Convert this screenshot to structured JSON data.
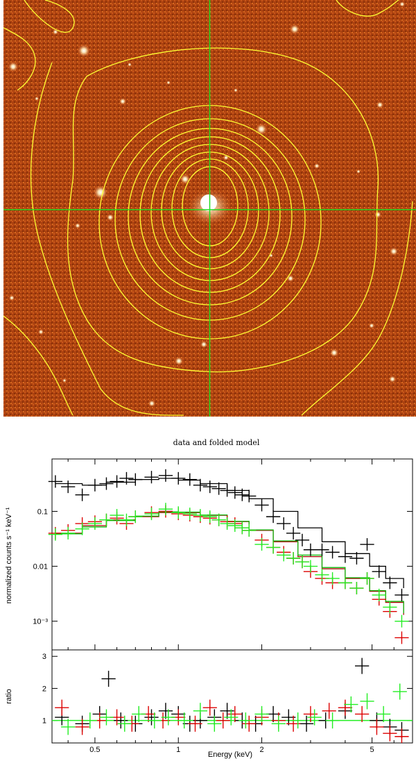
{
  "image_panel": {
    "background_color": "#a8400f",
    "contour_color": "#ffff33",
    "crosshair_color": "#22dd22",
    "crosshair": {
      "x_frac": 0.5,
      "y_frac": 0.503
    }
  },
  "chart_data": [
    {
      "type": "scatter",
      "title": "data and folded model",
      "xlabel": "Energy (keV)",
      "ylabel": "normalized counts s⁻¹ keV⁻¹",
      "xscale": "log",
      "yscale": "log",
      "xlim": [
        0.35,
        7.0
      ],
      "ylim": [
        0.0003,
        0.9
      ],
      "y_tick_labels": [
        "0.1",
        "0.01",
        "10⁻³"
      ],
      "y_tick_values": [
        0.1,
        0.01,
        0.001
      ],
      "x_tick_labels": [
        "0.5",
        "1",
        "2",
        "5"
      ],
      "x_tick_values": [
        0.5,
        1,
        2,
        5
      ],
      "series": [
        {
          "name": "black",
          "color": "#000000",
          "x": [
            0.36,
            0.4,
            0.45,
            0.5,
            0.55,
            0.6,
            0.65,
            0.7,
            0.8,
            0.9,
            1.0,
            1.1,
            1.2,
            1.3,
            1.4,
            1.5,
            1.6,
            1.7,
            1.8,
            2.0,
            2.2,
            2.4,
            2.6,
            2.8,
            3.0,
            3.3,
            3.6,
            4.0,
            4.4,
            4.8,
            5.3,
            5.8,
            6.4
          ],
          "y": [
            0.35,
            0.28,
            0.2,
            0.3,
            0.32,
            0.35,
            0.4,
            0.38,
            0.42,
            0.45,
            0.4,
            0.38,
            0.3,
            0.28,
            0.26,
            0.24,
            0.22,
            0.2,
            0.19,
            0.13,
            0.08,
            0.06,
            0.04,
            0.03,
            0.02,
            0.02,
            0.018,
            0.015,
            0.014,
            0.025,
            0.008,
            0.005,
            0.003
          ]
        },
        {
          "name": "red",
          "color": "#dd0000",
          "x": [
            0.36,
            0.4,
            0.45,
            0.5,
            0.55,
            0.6,
            0.65,
            0.7,
            0.8,
            0.9,
            1.0,
            1.1,
            1.2,
            1.3,
            1.4,
            1.5,
            1.6,
            1.7,
            1.8,
            2.0,
            2.2,
            2.4,
            2.6,
            2.8,
            3.0,
            3.3,
            3.6,
            4.0,
            4.4,
            4.8,
            5.3,
            5.8,
            6.4
          ],
          "y": [
            0.04,
            0.045,
            0.06,
            0.065,
            0.07,
            0.075,
            0.06,
            0.08,
            0.095,
            0.1,
            0.09,
            0.085,
            0.08,
            0.075,
            0.07,
            0.065,
            0.06,
            0.05,
            0.045,
            0.03,
            0.022,
            0.018,
            0.014,
            0.012,
            0.008,
            0.006,
            0.005,
            0.005,
            0.004,
            0.006,
            0.0025,
            0.0015,
            0.0005
          ]
        },
        {
          "name": "green",
          "color": "#22ee22",
          "x": [
            0.36,
            0.4,
            0.45,
            0.5,
            0.55,
            0.6,
            0.65,
            0.7,
            0.8,
            0.9,
            1.0,
            1.1,
            1.2,
            1.3,
            1.4,
            1.5,
            1.6,
            1.7,
            1.8,
            2.0,
            2.2,
            2.4,
            2.6,
            2.8,
            3.0,
            3.3,
            3.6,
            4.0,
            4.4,
            4.8,
            5.3,
            5.8,
            6.4
          ],
          "y": [
            0.038,
            0.04,
            0.048,
            0.06,
            0.07,
            0.085,
            0.07,
            0.08,
            0.09,
            0.11,
            0.095,
            0.09,
            0.085,
            0.08,
            0.07,
            0.06,
            0.055,
            0.05,
            0.045,
            0.025,
            0.022,
            0.016,
            0.014,
            0.012,
            0.01,
            0.007,
            0.006,
            0.005,
            0.004,
            0.006,
            0.003,
            0.0018,
            0.001
          ]
        }
      ],
      "models": [
        {
          "name": "black-model",
          "color": "#000000",
          "x": [
            0.36,
            0.45,
            0.55,
            0.7,
            0.85,
            1.0,
            1.2,
            1.5,
            1.8,
            2.2,
            2.7,
            3.3,
            4.0,
            4.9,
            5.6,
            6.5
          ],
          "y": [
            0.32,
            0.3,
            0.34,
            0.38,
            0.4,
            0.37,
            0.32,
            0.24,
            0.17,
            0.1,
            0.05,
            0.028,
            0.017,
            0.01,
            0.006,
            0.004
          ]
        },
        {
          "name": "red-model",
          "color": "#aa0000",
          "x": [
            0.36,
            0.45,
            0.55,
            0.7,
            0.85,
            1.0,
            1.2,
            1.5,
            1.8,
            2.2,
            2.7,
            3.3,
            4.0,
            4.9,
            5.6,
            6.5
          ],
          "y": [
            0.04,
            0.055,
            0.07,
            0.08,
            0.095,
            0.095,
            0.085,
            0.065,
            0.045,
            0.028,
            0.015,
            0.009,
            0.006,
            0.0035,
            0.0022,
            0.0013
          ]
        },
        {
          "name": "green-model",
          "color": "#11bb11",
          "x": [
            0.36,
            0.45,
            0.55,
            0.7,
            0.85,
            1.0,
            1.2,
            1.5,
            1.8,
            2.2,
            2.7,
            3.3,
            4.0,
            4.9,
            5.6,
            6.5
          ],
          "y": [
            0.039,
            0.052,
            0.068,
            0.082,
            0.098,
            0.097,
            0.086,
            0.066,
            0.046,
            0.029,
            0.016,
            0.0095,
            0.0062,
            0.0036,
            0.0023,
            0.0014
          ]
        }
      ]
    },
    {
      "type": "scatter",
      "title": "",
      "xlabel": "Energy (keV)",
      "ylabel": "ratio",
      "xscale": "log",
      "xlim": [
        0.35,
        7.0
      ],
      "ylim": [
        0.3,
        3.2
      ],
      "y_tick_labels": [
        "1",
        "2",
        "3"
      ],
      "y_tick_values": [
        1,
        2,
        3
      ],
      "x_tick_labels": [
        "0.5",
        "1",
        "2",
        "5"
      ],
      "x_tick_values": [
        0.5,
        1,
        2,
        5
      ],
      "reference_line": 1,
      "series": [
        {
          "name": "black",
          "color": "#000000",
          "x": [
            0.38,
            0.45,
            0.52,
            0.56,
            0.62,
            0.7,
            0.8,
            0.9,
            1.0,
            1.1,
            1.2,
            1.35,
            1.5,
            1.7,
            1.9,
            2.2,
            2.5,
            2.9,
            3.4,
            4.0,
            4.6,
            5.2,
            5.8,
            6.4
          ],
          "y": [
            1.1,
            0.9,
            1.2,
            2.3,
            1.0,
            0.9,
            1.1,
            1.3,
            1.2,
            0.9,
            1.0,
            1.1,
            1.3,
            1.0,
            0.9,
            1.2,
            1.1,
            0.9,
            1.0,
            1.3,
            2.7,
            1.0,
            0.8,
            0.7
          ]
        },
        {
          "name": "red",
          "color": "#dd0000",
          "x": [
            0.38,
            0.45,
            0.52,
            0.6,
            0.68,
            0.78,
            0.88,
            1.0,
            1.15,
            1.3,
            1.45,
            1.6,
            1.8,
            2.0,
            2.3,
            2.6,
            3.0,
            3.5,
            4.0,
            4.6,
            5.2,
            5.8,
            6.4
          ],
          "y": [
            1.4,
            0.8,
            1.0,
            1.1,
            0.9,
            1.2,
            1.0,
            1.1,
            0.9,
            1.4,
            1.0,
            1.2,
            0.9,
            1.1,
            1.0,
            0.9,
            1.2,
            1.3,
            1.4,
            1.2,
            0.8,
            0.6,
            0.5
          ]
        },
        {
          "name": "green",
          "color": "#22ee22",
          "x": [
            0.4,
            0.48,
            0.55,
            0.64,
            0.72,
            0.82,
            0.92,
            1.05,
            1.2,
            1.35,
            1.55,
            1.75,
            2.0,
            2.3,
            2.7,
            3.1,
            3.6,
            4.2,
            4.8,
            5.5,
            6.3
          ],
          "y": [
            0.8,
            1.0,
            1.1,
            0.9,
            1.2,
            1.0,
            1.1,
            1.0,
            1.3,
            0.9,
            1.1,
            1.0,
            1.2,
            0.9,
            1.0,
            1.1,
            1.0,
            1.5,
            1.6,
            1.2,
            1.9
          ]
        }
      ]
    }
  ]
}
